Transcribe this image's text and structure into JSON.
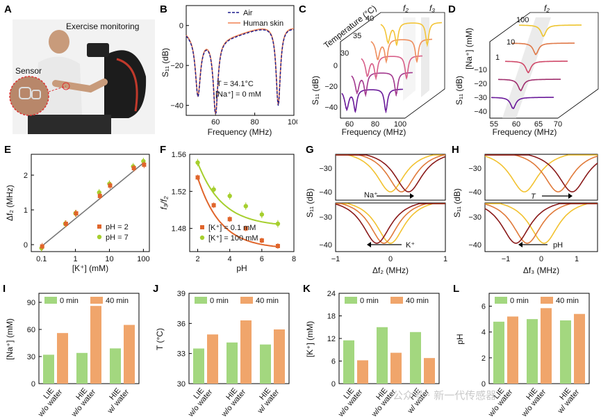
{
  "panelA": {
    "letter": "A",
    "title": "Exercise monitoring",
    "sensor": "Sensor"
  },
  "panelB": {
    "letter": "B",
    "ylabel": "S₁₁ (dB)",
    "xlabel": "Frequency (MHz)",
    "note1": "T = 34.1°C",
    "note2": "[Na⁺] = 0 mM",
    "legend": [
      "Air",
      "Human skin"
    ],
    "xticks": [
      "60",
      "80",
      "100"
    ],
    "yticks": [
      "0",
      "−20",
      "−40"
    ]
  },
  "panelC": {
    "letter": "C",
    "zlabel": "Temperature (°C)",
    "ylabel": "S₁₁ (dB)",
    "xlabel": "Frequency (MHz)",
    "f2": "f₂",
    "f3": "f₃",
    "xticks": [
      "60",
      "80",
      "100"
    ],
    "yticks": [
      "0",
      "−20",
      "−40"
    ],
    "zticks": [
      "40",
      "35",
      "30"
    ]
  },
  "panelD": {
    "letter": "D",
    "zlabel": "[Na⁺] (mM)",
    "ylabel": "S₁₁ (dB)",
    "xlabel": "Frequency (MHz)",
    "f2": "f₂",
    "xticks": [
      "55",
      "60",
      "65",
      "70"
    ],
    "yticks": [
      "−10",
      "−20",
      "−30",
      "−40"
    ],
    "zticks": [
      "100",
      "10",
      "1"
    ]
  },
  "panelE": {
    "letter": "E",
    "ylabel": "Δf₂ (MHz)",
    "xlabel": "[K⁺] (mM)",
    "legend": [
      "pH = 2",
      "pH = 7"
    ],
    "xticks": [
      "0.1",
      "1",
      "10",
      "100"
    ],
    "yticks": [
      "0",
      "1",
      "2"
    ]
  },
  "panelF": {
    "letter": "F",
    "ylabel": "f₃/f₂",
    "xlabel": "pH",
    "legend": [
      "[K⁺] = 0.1 mM",
      "[K⁺] = 100 mM"
    ],
    "xticks": [
      "2",
      "4",
      "6",
      "8"
    ],
    "yticks": [
      "1.48",
      "1.52",
      "1.56"
    ]
  },
  "panelG": {
    "letter": "G",
    "ylabel": "S₁₁ (dB)",
    "xlabel": "Δf₂ (MHz)",
    "top": "Na⁺",
    "bottom": "K⁺",
    "xticks": [
      "−1",
      "0",
      "1"
    ],
    "yticks": [
      "−30",
      "−40"
    ]
  },
  "panelH": {
    "letter": "H",
    "ylabel": "S₁₁ (dB)",
    "xlabel": "Δf₃ (MHz)",
    "top": "T",
    "bottom": "pH",
    "xticks": [
      "−1",
      "0",
      "1"
    ],
    "yticks": [
      "−30",
      "−40"
    ]
  },
  "legend_bars": [
    "0 min",
    "40 min"
  ],
  "categories": [
    "LIE\nw/o water",
    "HIE\nw/o water",
    "HIE\nw/ water"
  ],
  "colors": {
    "green": "#a3d77f",
    "orange": "#f0a56b",
    "red": "#e0652b",
    "lime": "#a6cf2e",
    "navy": "#1a1a8c",
    "salmon": "#f08050"
  },
  "watermark": "公众号 · 新一代传感器",
  "chart_data": [
    {
      "type": "line",
      "panel": "B",
      "x": [
        45,
        50,
        55,
        60,
        65,
        70,
        75,
        80,
        85,
        90,
        92,
        95,
        100
      ],
      "series": [
        {
          "name": "Air",
          "values": [
            -5,
            -30,
            -15,
            -37,
            -12,
            -4,
            -4,
            -8,
            -15,
            -28,
            -40,
            -22,
            -8
          ]
        },
        {
          "name": "Human skin",
          "values": [
            -5,
            -30,
            -15,
            -37,
            -12,
            -4,
            -4,
            -8,
            -15,
            -28,
            -38,
            -21,
            -8
          ]
        }
      ],
      "xlim": [
        45,
        100
      ],
      "ylim": [
        -45,
        10
      ]
    },
    {
      "type": "scatter",
      "panel": "E",
      "x": [
        0.1,
        0.5,
        1,
        5,
        10,
        50,
        100
      ],
      "series": [
        {
          "name": "pH = 2",
          "values": [
            -0.05,
            0.6,
            0.9,
            1.4,
            1.7,
            2.2,
            2.3
          ]
        },
        {
          "name": "pH = 7",
          "values": [
            -0.1,
            0.6,
            0.9,
            1.5,
            1.75,
            2.25,
            2.4
          ]
        }
      ],
      "xscale": "log",
      "xlim": [
        0.05,
        150
      ],
      "ylim": [
        -0.2,
        2.6
      ]
    },
    {
      "type": "scatter",
      "panel": "F",
      "x": [
        2,
        3,
        4,
        5,
        6,
        7
      ],
      "series": [
        {
          "name": "[K⁺] = 0.1 mM",
          "values": [
            1.535,
            1.505,
            1.49,
            1.48,
            1.467,
            1.461
          ]
        },
        {
          "name": "[K⁺] = 100 mM",
          "values": [
            1.551,
            1.522,
            1.515,
            1.504,
            1.495,
            1.485
          ]
        }
      ],
      "xlim": [
        1.5,
        8
      ],
      "ylim": [
        1.455,
        1.56
      ]
    },
    {
      "type": "bar",
      "panel": "I",
      "ylabel": "[Na⁺] (mM)",
      "categories": [
        "LIE w/o water",
        "HIE w/o water",
        "HIE w/ water"
      ],
      "series": [
        {
          "name": "0 min",
          "values": [
            32,
            34,
            39
          ]
        },
        {
          "name": "40 min",
          "values": [
            56,
            86,
            65
          ]
        }
      ],
      "ylim": [
        0,
        100
      ],
      "yticks": [
        "0",
        "30",
        "60",
        "90"
      ]
    },
    {
      "type": "bar",
      "panel": "J",
      "ylabel": "T (°C)",
      "categories": [
        "LIE w/o water",
        "HIE w/o water",
        "HIE w/ water"
      ],
      "series": [
        {
          "name": "0 min",
          "values": [
            33.5,
            34.1,
            33.9
          ]
        },
        {
          "name": "40 min",
          "values": [
            34.9,
            36.3,
            35.4
          ]
        }
      ],
      "ylim": [
        30,
        39
      ],
      "yticks": [
        "30",
        "33",
        "36",
        "39"
      ]
    },
    {
      "type": "bar",
      "panel": "K",
      "ylabel": "[K⁺] (mM)",
      "categories": [
        "LIE w/o water",
        "HIE w/o water",
        "HIE w/ water"
      ],
      "series": [
        {
          "name": "0 min",
          "values": [
            11.5,
            15,
            13.7
          ]
        },
        {
          "name": "40 min",
          "values": [
            6.2,
            8.2,
            6.8
          ]
        }
      ],
      "ylim": [
        0,
        24
      ],
      "yticks": [
        "0",
        "6",
        "12",
        "18",
        "24"
      ]
    },
    {
      "type": "bar",
      "panel": "L",
      "ylabel": "pH",
      "categories": [
        "LIE w/o water",
        "HIE w/o water",
        "HIE w/ water"
      ],
      "series": [
        {
          "name": "0 min",
          "values": [
            4.8,
            5.0,
            4.9
          ]
        },
        {
          "name": "40 min",
          "values": [
            5.2,
            5.85,
            5.4
          ]
        }
      ],
      "ylim": [
        0,
        7
      ],
      "yticks": [
        "0",
        "2",
        "4",
        "6"
      ]
    }
  ]
}
